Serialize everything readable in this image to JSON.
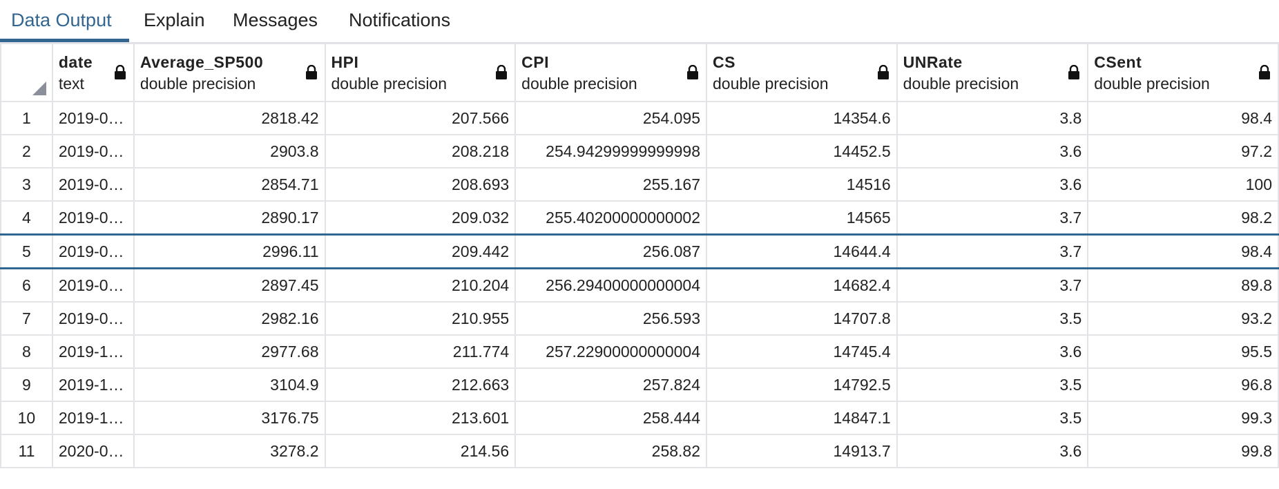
{
  "tabs": [
    {
      "label": "Data Output",
      "active": true
    },
    {
      "label": "Explain",
      "active": false
    },
    {
      "label": "Messages",
      "active": false
    },
    {
      "label": "Notifications",
      "active": false
    }
  ],
  "accent_color": "#326690",
  "columns": [
    {
      "name": "date",
      "type": "text",
      "align": "left",
      "locked": true
    },
    {
      "name": "Average_SP500",
      "type": "double precision",
      "align": "right",
      "locked": true
    },
    {
      "name": "HPI",
      "type": "double precision",
      "align": "right",
      "locked": true
    },
    {
      "name": "CPI",
      "type": "double precision",
      "align": "right",
      "locked": true
    },
    {
      "name": "CS",
      "type": "double precision",
      "align": "right",
      "locked": true
    },
    {
      "name": "UNRate",
      "type": "double precision",
      "align": "right",
      "locked": true
    },
    {
      "name": "CSent",
      "type": "double precision",
      "align": "right",
      "locked": true
    }
  ],
  "selected_row": 5,
  "rows": [
    {
      "num": "1",
      "cells": [
        "2019-0…",
        "2818.42",
        "207.566",
        "254.095",
        "14354.6",
        "3.8",
        "98.4"
      ]
    },
    {
      "num": "2",
      "cells": [
        "2019-0…",
        "2903.8",
        "208.218",
        "254.94299999999998",
        "14452.5",
        "3.6",
        "97.2"
      ]
    },
    {
      "num": "3",
      "cells": [
        "2019-0…",
        "2854.71",
        "208.693",
        "255.167",
        "14516",
        "3.6",
        "100"
      ]
    },
    {
      "num": "4",
      "cells": [
        "2019-0…",
        "2890.17",
        "209.032",
        "255.40200000000002",
        "14565",
        "3.7",
        "98.2"
      ]
    },
    {
      "num": "5",
      "cells": [
        "2019-0…",
        "2996.11",
        "209.442",
        "256.087",
        "14644.4",
        "3.7",
        "98.4"
      ]
    },
    {
      "num": "6",
      "cells": [
        "2019-0…",
        "2897.45",
        "210.204",
        "256.29400000000004",
        "14682.4",
        "3.7",
        "89.8"
      ]
    },
    {
      "num": "7",
      "cells": [
        "2019-0…",
        "2982.16",
        "210.955",
        "256.593",
        "14707.8",
        "3.5",
        "93.2"
      ]
    },
    {
      "num": "8",
      "cells": [
        "2019-1…",
        "2977.68",
        "211.774",
        "257.22900000000004",
        "14745.4",
        "3.6",
        "95.5"
      ]
    },
    {
      "num": "9",
      "cells": [
        "2019-1…",
        "3104.9",
        "212.663",
        "257.824",
        "14792.5",
        "3.5",
        "96.8"
      ]
    },
    {
      "num": "10",
      "cells": [
        "2019-1…",
        "3176.75",
        "213.601",
        "258.444",
        "14847.1",
        "3.5",
        "99.3"
      ]
    },
    {
      "num": "11",
      "cells": [
        "2020-0…",
        "3278.2",
        "214.56",
        "258.82",
        "14913.7",
        "3.6",
        "99.8"
      ]
    }
  ]
}
